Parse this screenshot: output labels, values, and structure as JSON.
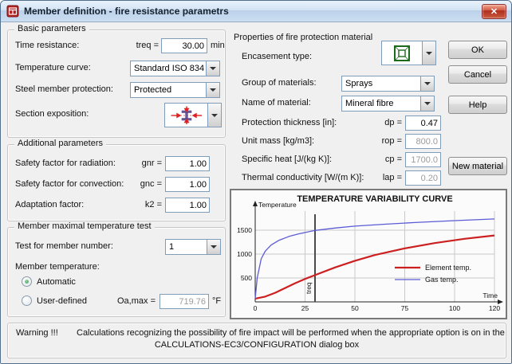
{
  "window": {
    "title": "Member definition  - fire resistance parametrs",
    "close_glyph": "✕"
  },
  "basic": {
    "title": "Basic parameters",
    "time_resistance_label": "Time resistance:",
    "treq_label": "treq =",
    "treq_value": "30.00",
    "treq_unit": "min",
    "temperature_curve_label": "Temperature curve:",
    "temperature_curve_value": "Standard ISO 834",
    "steel_protection_label": "Steel member protection:",
    "steel_protection_value": "Protected",
    "section_exposition_label": "Section exposition:"
  },
  "additional": {
    "title": "Additional parameters",
    "radiation_label": "Safety factor for radiation:",
    "gnr_label": "gnr =",
    "gnr_value": "1.00",
    "convection_label": "Safety factor for convection:",
    "gnc_label": "gnc =",
    "gnc_value": "1.00",
    "adaptation_label": "Adaptation factor:",
    "k2_label": "k2 =",
    "k2_value": "1.00"
  },
  "member_test": {
    "title": "Member maximal temperature test",
    "test_number_label": "Test for member number:",
    "test_number_value": "1",
    "member_temperature_label": "Member temperature:",
    "automatic_label": "Automatic",
    "user_defined_label": "User-defined",
    "oamax_label": "Oa,max =",
    "oamax_value": "719.76",
    "oamax_unit": "°F"
  },
  "protection": {
    "header": "Properties of fire protection material",
    "encasement_label": "Encasement type:",
    "group_label": "Group of materials:",
    "group_value": "Sprays",
    "name_label": "Name of material:",
    "name_value": "Mineral fibre",
    "thickness_label": "Protection thickness [in]:",
    "dp_label": "dp =",
    "dp_value": "0.47",
    "unit_mass_label": "Unit mass [kg/m3]:",
    "rop_label": "rop =",
    "rop_value": "800.0",
    "specific_heat_label": "Specific heat [J/(kg K)]:",
    "cp_label": "cp =",
    "cp_value": "1700.0",
    "conductivity_label": "Thermal conductivity [W/(m K)]:",
    "lap_label": "lap =",
    "lap_value": "0.20"
  },
  "buttons": {
    "ok": "OK",
    "cancel": "Cancel",
    "help": "Help",
    "new_material": "New material"
  },
  "warning": {
    "label": "Warning !!!",
    "line1": "Calculations recognizing the possibility of fire impact will be performed when the appropriate option is on in the",
    "line2": "CALCULATIONS-EC3/CONFIGURATION dialog box"
  },
  "chart_data": {
    "type": "line",
    "title": "TEMPERATURE VARIABILITY CURVE",
    "xlabel": "Time",
    "ylabel": "Temperature",
    "xlim": [
      0,
      120
    ],
    "ylim": [
      0,
      1900
    ],
    "x_ticks": [
      0,
      25,
      50,
      75,
      100,
      120
    ],
    "y_ticks": [
      500,
      1000,
      1500
    ],
    "grid": true,
    "legend_position": "right-inside",
    "treq_marker": {
      "x": 30,
      "label": "treq"
    },
    "series": [
      {
        "name": "Element temp.",
        "color": "#cc2020",
        "width": 2.2,
        "x": [
          0,
          5,
          10,
          15,
          20,
          25,
          30,
          40,
          50,
          60,
          75,
          90,
          105,
          120
        ],
        "y": [
          68,
          110,
          190,
          290,
          390,
          480,
          560,
          720,
          860,
          980,
          1120,
          1230,
          1320,
          1390
        ]
      },
      {
        "name": "Gas temp.",
        "color": "#5b5bd6",
        "width": 1.3,
        "x": [
          0,
          1,
          3,
          5,
          8,
          12,
          17,
          22,
          30,
          40,
          50,
          65,
          80,
          100,
          120
        ],
        "y": [
          68,
          500,
          900,
          1060,
          1190,
          1290,
          1370,
          1425,
          1495,
          1545,
          1585,
          1625,
          1660,
          1700,
          1735
        ]
      }
    ]
  }
}
